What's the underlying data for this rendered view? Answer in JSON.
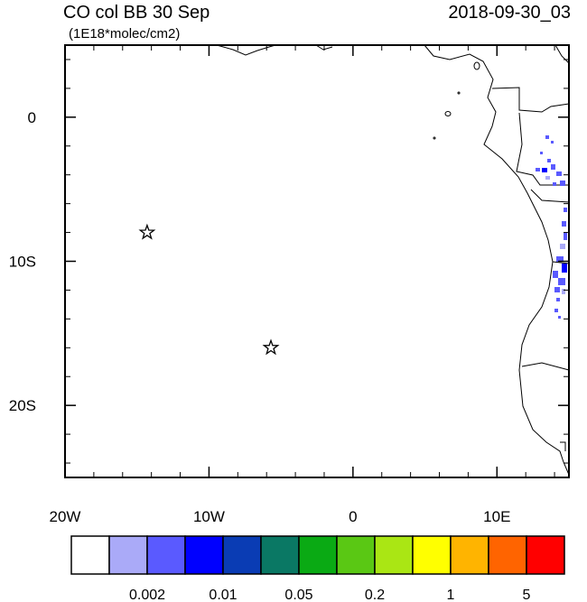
{
  "map": {
    "title": "CO col BB 30 Sep",
    "time": "2018-09-30_03",
    "units": "(1E18*molec/cm2)",
    "lonlim": [
      -20,
      15
    ],
    "latlim": [
      -25,
      5
    ],
    "lon_ticks": [
      {
        "value": -20,
        "label": "20W"
      },
      {
        "value": -10,
        "label": "10W"
      },
      0,
      {
        "value": 10,
        "label": "10E"
      }
    ],
    "lat_ticks": [
      0,
      {
        "value": -10,
        "label": "10S"
      },
      {
        "value": -20,
        "label": "20S"
      }
    ],
    "lon_minor_ticks": [
      -18,
      -16,
      -14,
      -12,
      -8,
      -6,
      -4,
      -2,
      2,
      4,
      6,
      8,
      12,
      14
    ],
    "lat_minor_ticks": [
      4,
      2,
      -2,
      -4,
      -6,
      -8,
      -12,
      -14,
      -16,
      -18,
      -22,
      -24
    ],
    "markers": [
      {
        "lon": -14.3,
        "lat": -8
      },
      {
        "lon": -5.7,
        "lat": -16
      }
    ]
  },
  "colorbar": {
    "colors": [
      "#ffffff",
      "#aaaaf8",
      "#5a5aff",
      "#0000ff",
      "#0a3cb4",
      "#0a7864",
      "#0aaa14",
      "#5ac814",
      "#aae614",
      "#ffff00",
      "#ffb400",
      "#ff6400",
      "#ff0000"
    ],
    "labels": [
      "0.002",
      "0.01",
      "0.05",
      "0.2",
      "1",
      "5"
    ]
  }
}
